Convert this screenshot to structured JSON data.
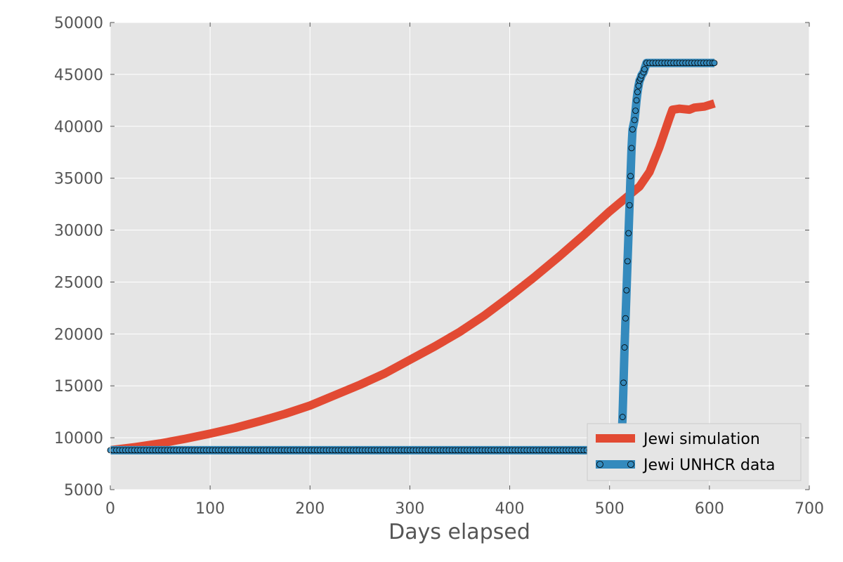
{
  "chart_data": {
    "type": "line",
    "title": "",
    "xlabel": "Days elapsed",
    "ylabel": "",
    "xlim": [
      0,
      700
    ],
    "ylim": [
      5000,
      50000
    ],
    "xticks": [
      0,
      100,
      200,
      300,
      400,
      500,
      600,
      700
    ],
    "yticks": [
      5000,
      10000,
      15000,
      20000,
      25000,
      30000,
      35000,
      40000,
      45000,
      50000
    ],
    "grid": true,
    "legend": "lower-right",
    "background_color": "#e5e5e5",
    "series": [
      {
        "name": "Jewi simulation",
        "color": "#e24a33",
        "marker": "none",
        "points": [
          [
            0,
            8800
          ],
          [
            25,
            9100
          ],
          [
            50,
            9450
          ],
          [
            75,
            9900
          ],
          [
            100,
            10400
          ],
          [
            125,
            10950
          ],
          [
            150,
            11600
          ],
          [
            175,
            12300
          ],
          [
            200,
            13100
          ],
          [
            225,
            14100
          ],
          [
            250,
            15100
          ],
          [
            275,
            16200
          ],
          [
            300,
            17500
          ],
          [
            325,
            18800
          ],
          [
            350,
            20200
          ],
          [
            375,
            21800
          ],
          [
            400,
            23600
          ],
          [
            425,
            25500
          ],
          [
            450,
            27500
          ],
          [
            475,
            29600
          ],
          [
            500,
            31800
          ],
          [
            510,
            32600
          ],
          [
            520,
            33400
          ],
          [
            530,
            34200
          ],
          [
            540,
            35600
          ],
          [
            550,
            38000
          ],
          [
            560,
            40800
          ],
          [
            563,
            41600
          ],
          [
            570,
            41700
          ],
          [
            580,
            41600
          ],
          [
            585,
            41800
          ],
          [
            595,
            41900
          ],
          [
            605,
            42200
          ]
        ]
      },
      {
        "name": "Jewi UNHCR data",
        "color": "#348abd",
        "marker": "circle",
        "points": [
          [
            0,
            8800
          ],
          [
            508,
            8800
          ],
          [
            511,
            8800
          ],
          [
            512,
            9800
          ],
          [
            513,
            12000
          ],
          [
            514,
            15300
          ],
          [
            515,
            18700
          ],
          [
            516,
            21500
          ],
          [
            517,
            24200
          ],
          [
            518,
            27000
          ],
          [
            519,
            29700
          ],
          [
            520,
            32400
          ],
          [
            521,
            35200
          ],
          [
            522,
            37900
          ],
          [
            523,
            39700
          ],
          [
            525,
            40600
          ],
          [
            526,
            41500
          ],
          [
            527,
            42500
          ],
          [
            528,
            43300
          ],
          [
            529,
            43900
          ],
          [
            530,
            44400
          ],
          [
            531,
            44600
          ],
          [
            532,
            44900
          ],
          [
            534,
            45200
          ],
          [
            535,
            45500
          ],
          [
            537,
            46100
          ],
          [
            605,
            46100
          ]
        ]
      }
    ]
  }
}
